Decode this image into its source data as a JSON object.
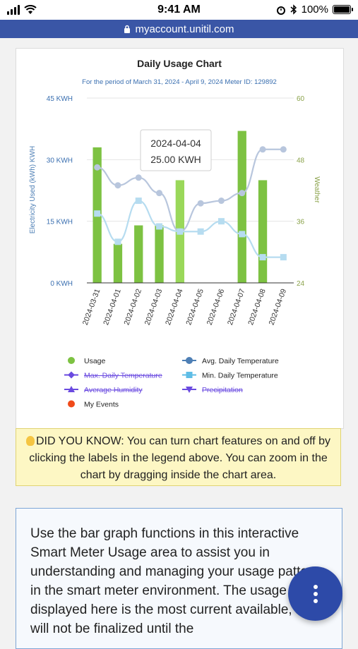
{
  "status_bar": {
    "time": "9:41 AM",
    "battery": "100%"
  },
  "browser": {
    "url": "myaccount.unitil.com"
  },
  "chart_card": {
    "tooltip": {
      "date": "2024-04-04",
      "value": "25.00 KWH"
    },
    "legend": [
      {
        "label": "Usage",
        "color": "#7dc242",
        "marker": "circle",
        "strike": false
      },
      {
        "label": "Avg. Daily Temperature",
        "color": "#4e7fb5",
        "marker": "line-circle",
        "strike": false
      },
      {
        "label": "Max. Daily Temperature",
        "color": "#6a4ae0",
        "marker": "line-diamond",
        "strike": true
      },
      {
        "label": "Min. Daily Temperature",
        "color": "#5fbde6",
        "marker": "line-square",
        "strike": false
      },
      {
        "label": "Average Humidity",
        "color": "#6a4ae0",
        "marker": "line-triangle",
        "strike": true
      },
      {
        "label": "Precipitation",
        "color": "#6a4ae0",
        "marker": "line-triangle-down",
        "strike": true
      },
      {
        "label": "My Events",
        "color": "#f04a1a",
        "marker": "circle",
        "strike": false
      }
    ]
  },
  "chart_data": {
    "type": "bar",
    "title": "Daily Usage Chart",
    "subtitle": "For the period of March 31, 2024 - April 9, 2024 Meter ID: 129892",
    "ylabel": "Electricity Used (kWh) KWH",
    "y2label": "Weather",
    "ylim": [
      0,
      45
    ],
    "y2lim": [
      24,
      60
    ],
    "yticks": [
      "0 KWH",
      "15 KWH",
      "30 KWH",
      "45 KWH"
    ],
    "y2ticks": [
      "24",
      "36",
      "48",
      "60"
    ],
    "categories": [
      "2024-03-31",
      "2024-04-01",
      "2024-04-02",
      "2024-04-03",
      "2024-04-04",
      "2024-04-05",
      "2024-04-06",
      "2024-04-07",
      "2024-04-08",
      "2024-04-09"
    ],
    "grid": true,
    "legend_position": "bottom",
    "series": [
      {
        "name": "Usage",
        "kind": "bar",
        "axis": "left",
        "color": "#7dc242",
        "highlight_color": "#9ad85a",
        "values": [
          33,
          9.5,
          14,
          14,
          25,
          null,
          null,
          37,
          25,
          null
        ]
      },
      {
        "name": "Avg. Daily Temperature",
        "kind": "line",
        "axis": "right",
        "color": "#b8c6dd",
        "values": [
          46.5,
          43,
          44.5,
          41.5,
          34,
          39.5,
          40,
          41.5,
          50,
          50
        ]
      },
      {
        "name": "Min. Daily Temperature",
        "kind": "line",
        "axis": "right",
        "color": "#b6dcf0",
        "values": [
          37.5,
          32,
          40,
          35,
          34,
          34,
          36,
          33.5,
          29,
          29
        ]
      }
    ],
    "highlight_index": 4
  },
  "tip": {
    "text": "DID YOU KNOW: You can turn chart features on and off by clicking the labels in the legend above. You can zoom in the chart by dragging inside the chart area."
  },
  "info": {
    "text": "Use the bar graph functions in this interactive Smart Meter Usage area to assist you in understanding and managing your usage patterns in the smart meter environment. The usage data displayed here is the most current available, but will not be finalized until the"
  }
}
